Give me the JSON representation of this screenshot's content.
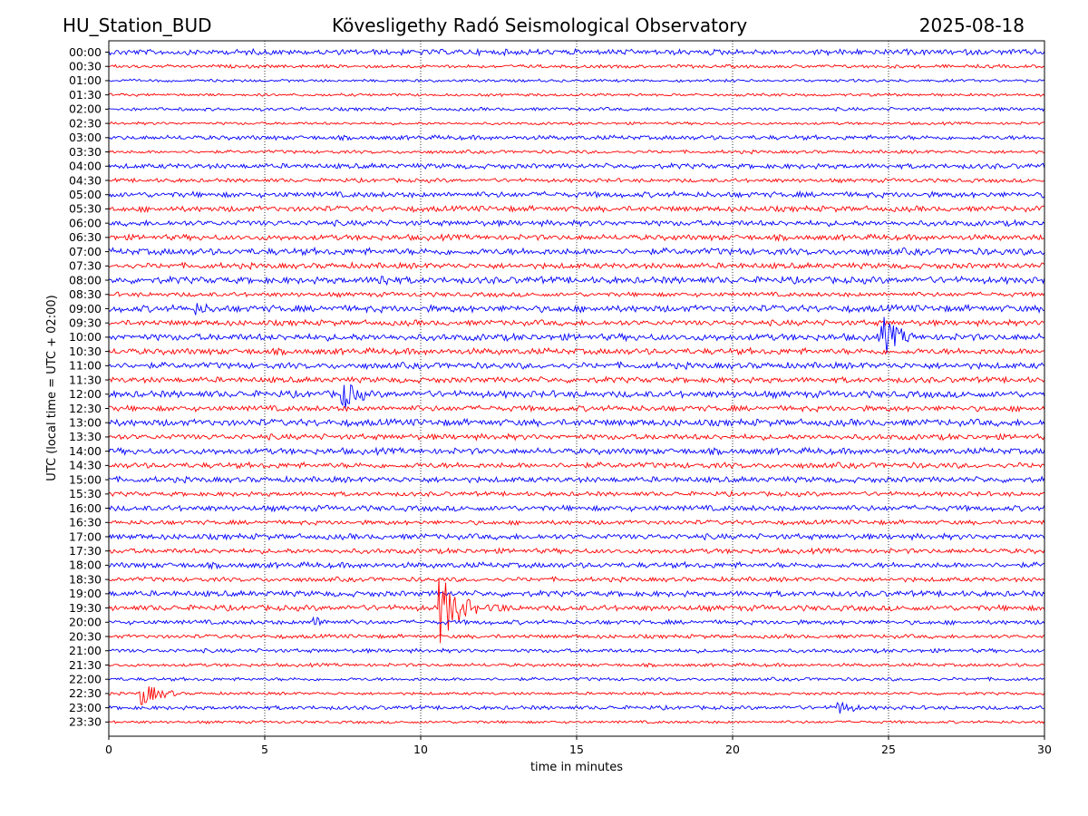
{
  "header": {
    "station": "HU_Station_BUD",
    "observatory": "Kövesligethy Radó Seismological Observatory",
    "date": "2025-08-18"
  },
  "chart_data": {
    "type": "line",
    "subtype": "helicorder",
    "xlabel": "time in minutes",
    "ylabel": "UTC (local time = UTC + 02:00)",
    "xlim": [
      0,
      30
    ],
    "x_ticks": [
      0,
      5,
      10,
      15,
      20,
      25,
      30
    ],
    "grid": "vertical dotted lines at x ticks",
    "colors": [
      "#0000ff",
      "#ff0000"
    ],
    "rows": [
      "00:00",
      "00:30",
      "01:00",
      "01:30",
      "02:00",
      "02:30",
      "03:00",
      "03:30",
      "04:00",
      "04:30",
      "05:00",
      "05:30",
      "06:00",
      "06:30",
      "07:00",
      "07:30",
      "08:00",
      "08:30",
      "09:00",
      "09:30",
      "10:00",
      "10:30",
      "11:00",
      "11:30",
      "12:00",
      "12:30",
      "13:00",
      "13:30",
      "14:00",
      "14:30",
      "15:00",
      "15:30",
      "16:00",
      "16:30",
      "17:00",
      "17:30",
      "18:00",
      "18:30",
      "19:00",
      "19:30",
      "20:00",
      "20:30",
      "21:00",
      "21:30",
      "22:00",
      "22:30",
      "23:00",
      "23:30"
    ],
    "noise_level": [
      1.0,
      0.6,
      0.5,
      0.5,
      0.6,
      0.5,
      0.8,
      0.6,
      0.9,
      0.7,
      1.0,
      1.0,
      1.0,
      1.0,
      1.2,
      1.0,
      1.2,
      0.8,
      1.2,
      1.0,
      1.2,
      1.1,
      1.1,
      1.0,
      1.2,
      1.0,
      1.2,
      1.0,
      1.1,
      1.0,
      1.0,
      0.8,
      1.0,
      0.8,
      1.0,
      0.9,
      1.0,
      0.8,
      1.0,
      1.0,
      0.8,
      0.7,
      0.7,
      0.6,
      0.6,
      0.5,
      0.7,
      0.5
    ],
    "events": [
      {
        "row": "08:00",
        "minute": 8.7,
        "amplitude": 6,
        "duration": 0.6
      },
      {
        "row": "09:00",
        "minute": 2.8,
        "amplitude": 5,
        "duration": 0.6
      },
      {
        "row": "10:00",
        "minute": 24.8,
        "amplitude": 22,
        "duration": 1.0
      },
      {
        "row": "12:00",
        "minute": 7.5,
        "amplitude": 16,
        "duration": 0.8
      },
      {
        "row": "19:30",
        "minute": 10.6,
        "amplitude": 40,
        "duration": 1.2
      },
      {
        "row": "19:30",
        "minute": 12.3,
        "amplitude": 8,
        "duration": 0.5
      },
      {
        "row": "20:00",
        "minute": 6.5,
        "amplitude": 6,
        "duration": 0.8
      },
      {
        "row": "22:30",
        "minute": 1.0,
        "amplitude": 14,
        "duration": 1.2
      },
      {
        "row": "23:00",
        "minute": 23.4,
        "amplitude": 7,
        "duration": 0.8
      }
    ]
  }
}
